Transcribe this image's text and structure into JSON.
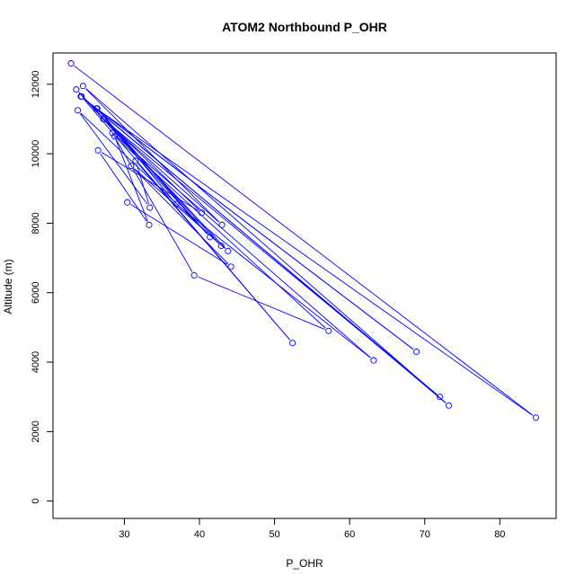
{
  "chart_data": {
    "type": "line",
    "title": "ATOM2 Northbound P_OHR",
    "xlabel": "P_OHR",
    "ylabel": "Altitude (m)",
    "xlim": [
      20.5,
      87.5
    ],
    "ylim": [
      -500,
      12900
    ],
    "x_ticks": [
      30,
      40,
      50,
      60,
      70,
      80
    ],
    "y_ticks": [
      0,
      2000,
      4000,
      6000,
      8000,
      10000,
      12000
    ],
    "grid": false,
    "legend": "none",
    "series": [
      {
        "color": "#0000ff",
        "marker": "open-circle",
        "points": [
          {
            "x": 22.9,
            "y": 12600
          },
          {
            "x": 84.8,
            "y": 2400
          },
          {
            "x": 26.3,
            "y": 11300
          },
          {
            "x": 68.9,
            "y": 4300
          },
          {
            "x": 24.2,
            "y": 11650
          },
          {
            "x": 72.0,
            "y": 3000
          },
          {
            "x": 27.2,
            "y": 11000
          },
          {
            "x": 43.0,
            "y": 7950
          },
          {
            "x": 24.5,
            "y": 11950
          },
          {
            "x": 73.2,
            "y": 2750
          },
          {
            "x": 24.3,
            "y": 11650
          },
          {
            "x": 52.4,
            "y": 4550
          },
          {
            "x": 31.5,
            "y": 9800
          },
          {
            "x": 33.4,
            "y": 8450
          },
          {
            "x": 23.8,
            "y": 11250
          },
          {
            "x": 42.9,
            "y": 7350
          },
          {
            "x": 27.3,
            "y": 11000
          },
          {
            "x": 40.3,
            "y": 8300
          },
          {
            "x": 26.5,
            "y": 10100
          },
          {
            "x": 33.3,
            "y": 7950
          },
          {
            "x": 28.7,
            "y": 10500
          },
          {
            "x": 57.2,
            "y": 4900
          },
          {
            "x": 39.3,
            "y": 6500
          },
          {
            "x": 28.4,
            "y": 10600
          },
          {
            "x": 63.2,
            "y": 4050
          },
          {
            "x": 36.9,
            "y": 8550
          },
          {
            "x": 26.4,
            "y": 11300
          },
          {
            "x": 41.4,
            "y": 7600
          },
          {
            "x": 23.6,
            "y": 11850
          },
          {
            "x": 43.8,
            "y": 7200
          },
          {
            "x": 30.9,
            "y": 9650
          },
          {
            "x": 44.2,
            "y": 6750
          },
          {
            "x": 30.4,
            "y": 8600
          }
        ]
      }
    ]
  }
}
